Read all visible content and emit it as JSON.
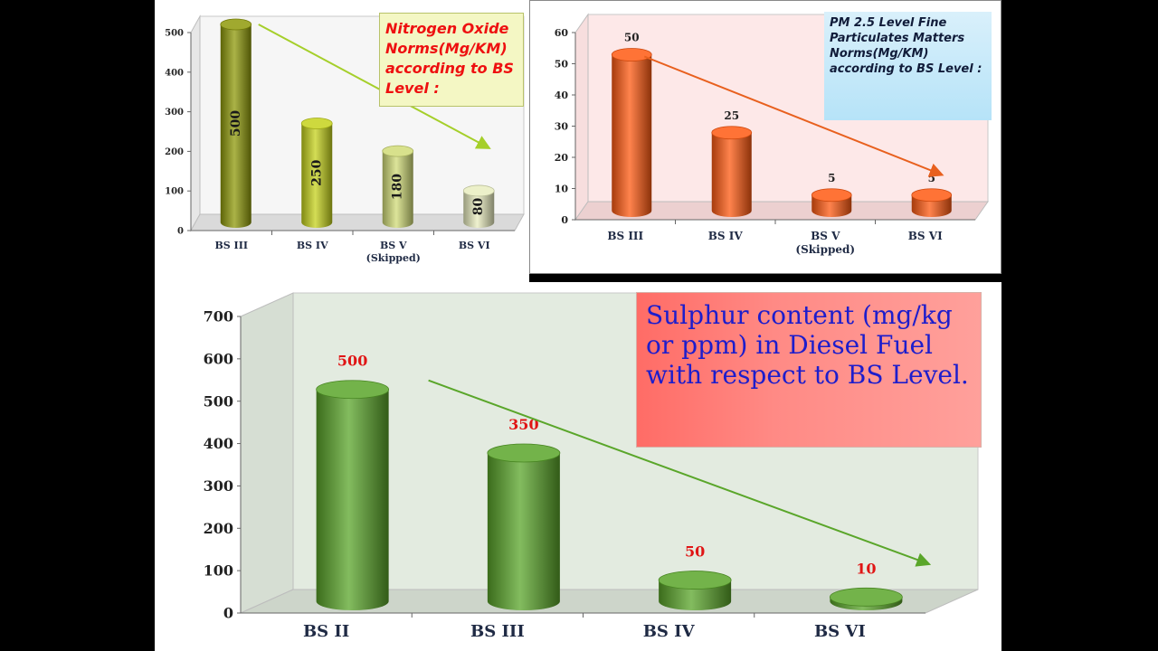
{
  "notes": {
    "nox": "Nitrogen Oxide Norms(Mg/KM) according to BS Level :",
    "pm": "PM 2.5 Level Fine Particulates Matters Norms(Mg/KM) according to BS Level :",
    "sulphur": "Sulphur content (mg/kg or ppm) in Diesel Fuel with respect to BS Level."
  },
  "colors": {
    "nox_bars": [
      "#8f9a0a",
      "#c5d21c",
      "#d1dc78",
      "#e9edbf"
    ],
    "pm_bar": "#ff5a12",
    "sulphur_bar": "#5aa62a",
    "pm_panel_bg": "#fde8e8",
    "sulphur_panel_bg": "#e3ebe0",
    "nox_arrow": "#a5cf2a",
    "pm_arrow": "#e8601e",
    "sulphur_arrow": "#5aa62a"
  },
  "chart_data": [
    {
      "type": "bar",
      "title": "Nitrogen Oxide Norms(Mg/KM) according to BS Level :",
      "categories": [
        "BS III",
        "BS IV",
        "BS V",
        "BS VI"
      ],
      "category_notes": [
        "",
        "",
        "(Skipped)",
        ""
      ],
      "values": [
        500,
        250,
        180,
        80
      ],
      "data_labels": [
        "500",
        "250",
        "180",
        "80"
      ],
      "yticks": [
        "0",
        "100",
        "200",
        "300",
        "400",
        "500"
      ],
      "ylim": [
        0,
        500
      ],
      "grid": false,
      "bar_style": "3d-cylinder",
      "trend_arrow": true
    },
    {
      "type": "bar",
      "title": "PM 2.5 Level Fine Particulates Matters Norms(Mg/KM) according to BS Level :",
      "categories": [
        "BS III",
        "BS IV",
        "BS V",
        "BS VI"
      ],
      "category_notes": [
        "",
        "",
        "(Skipped)",
        ""
      ],
      "values": [
        50,
        25,
        5,
        5
      ],
      "data_labels": [
        "50",
        "25",
        "5",
        "5"
      ],
      "yticks": [
        "0",
        "10",
        "20",
        "30",
        "40",
        "50",
        "60"
      ],
      "ylim": [
        0,
        60
      ],
      "grid": false,
      "bar_style": "3d-cylinder",
      "trend_arrow": true
    },
    {
      "type": "bar",
      "title": "Sulphur content (mg/kg or ppm) in Diesel Fuel with respect to BS Level.",
      "categories": [
        "BS II",
        "BS III",
        "BS IV",
        "BS VI"
      ],
      "values": [
        500,
        350,
        50,
        10
      ],
      "data_labels": [
        "500",
        "350",
        "50",
        "10"
      ],
      "yticks": [
        "0",
        "100",
        "200",
        "300",
        "400",
        "500",
        "600",
        "700"
      ],
      "ylim": [
        0,
        700
      ],
      "grid": false,
      "bar_style": "3d-cylinder",
      "trend_arrow": true
    }
  ]
}
